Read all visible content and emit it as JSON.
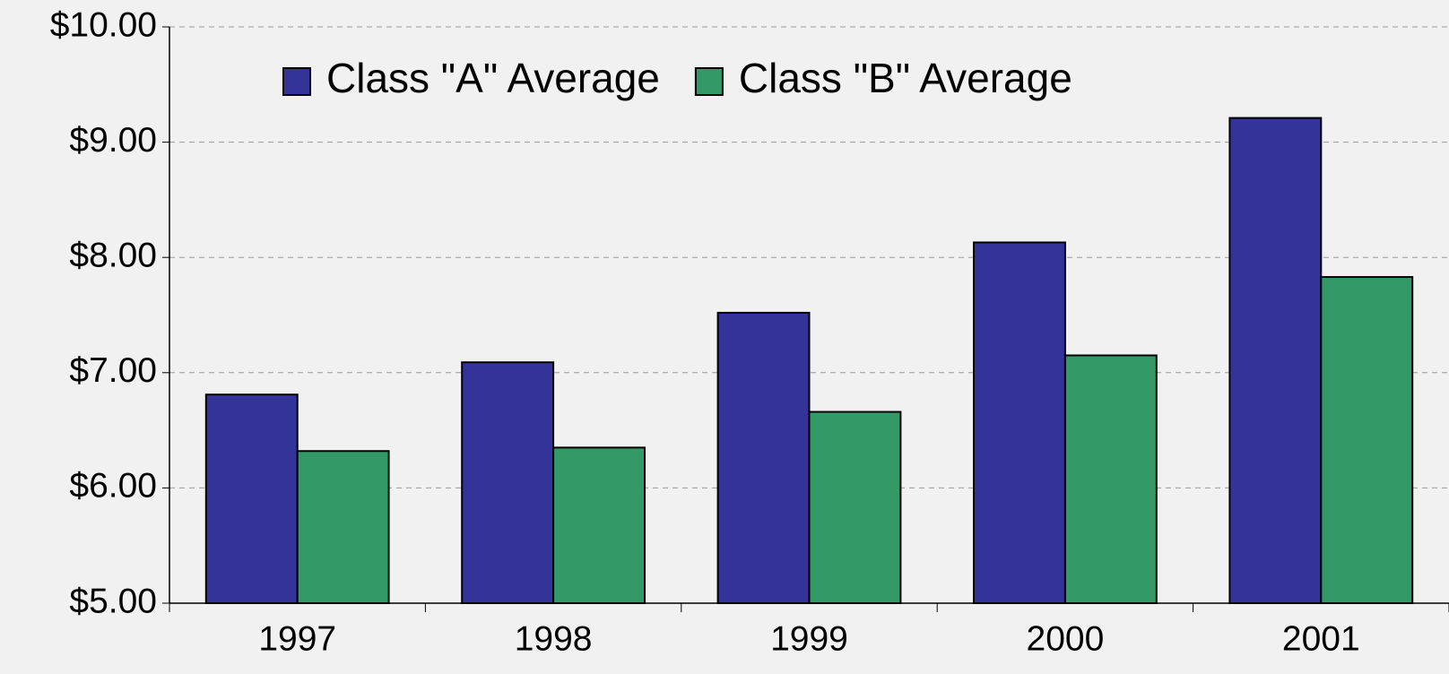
{
  "chart_data": {
    "type": "bar",
    "categories": [
      "1997",
      "1998",
      "1999",
      "2000",
      "2001"
    ],
    "series": [
      {
        "name": "Class \"A\" Average",
        "color": "#333399",
        "values": [
          6.81,
          7.09,
          7.52,
          8.13,
          9.21
        ]
      },
      {
        "name": "Class \"B\" Average",
        "color": "#339966",
        "values": [
          6.32,
          6.35,
          6.66,
          7.15,
          7.83
        ]
      }
    ],
    "ylim": [
      5,
      10
    ],
    "yticks": [
      {
        "value": 5,
        "label": "$5.00"
      },
      {
        "value": 6,
        "label": "$6.00"
      },
      {
        "value": 7,
        "label": "$7.00"
      },
      {
        "value": 8,
        "label": "$8.00"
      },
      {
        "value": 9,
        "label": "$9.00"
      },
      {
        "value": 10,
        "label": "$10.00"
      }
    ],
    "grid": true
  }
}
